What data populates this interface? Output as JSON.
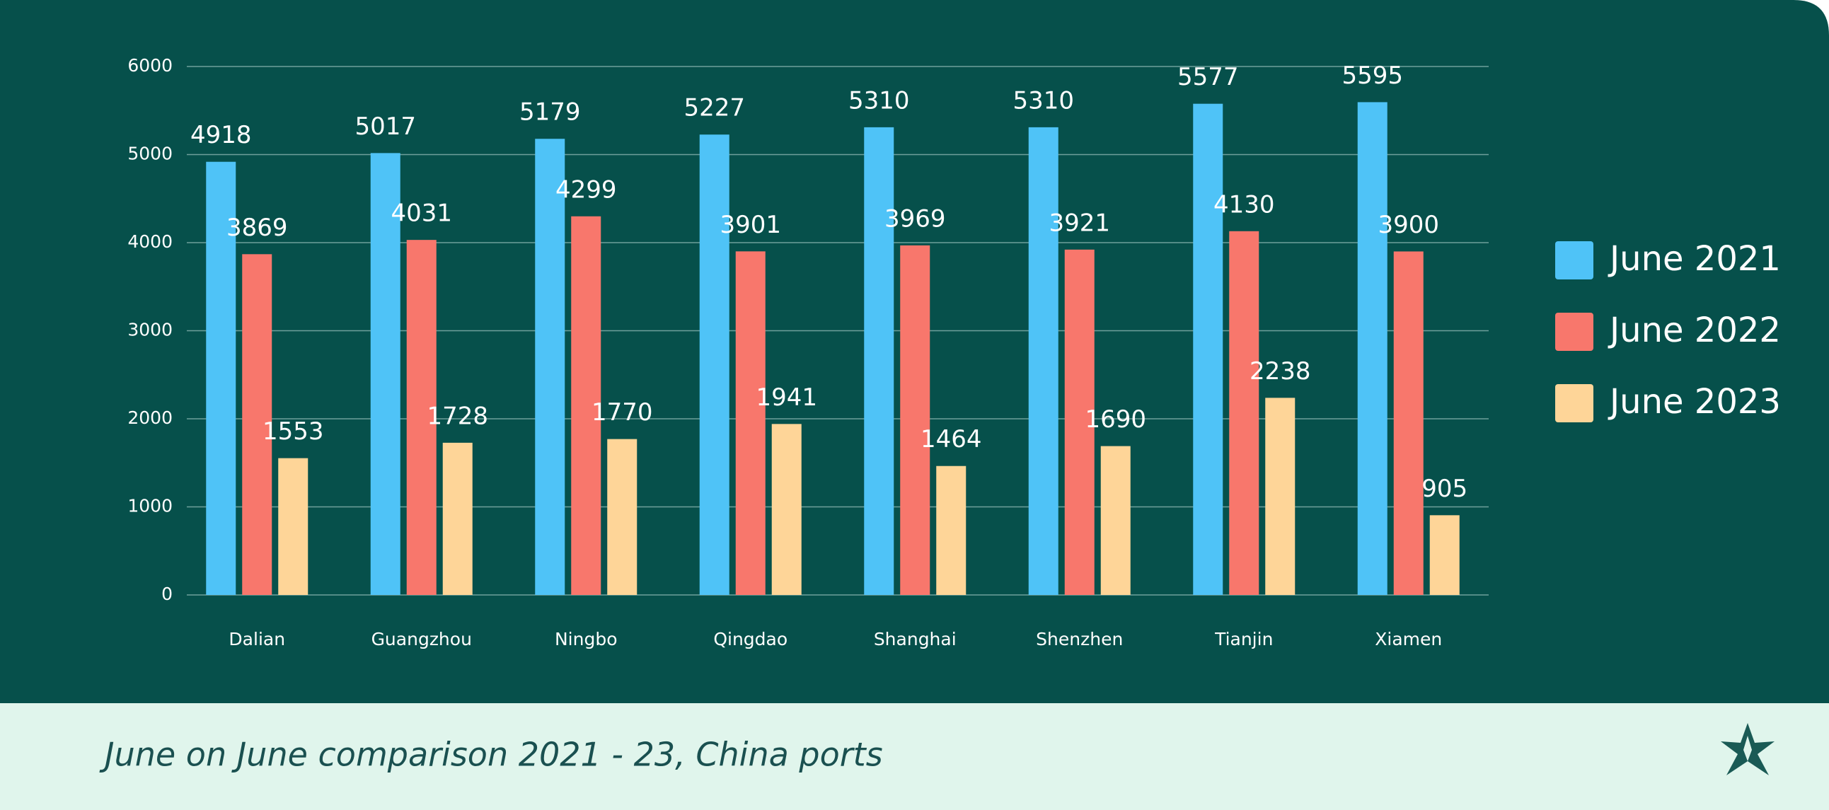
{
  "chart_data": {
    "type": "bar",
    "caption": "June on June comparison 2021 - 23, China ports",
    "categories": [
      "Dalian",
      "Guangzhou",
      "Ningbo",
      "Qingdao",
      "Shanghai",
      "Shenzhen",
      "Tianjin",
      "Xiamen"
    ],
    "series": [
      {
        "name": "June 2021",
        "color": "#4fc3f7",
        "values": [
          4918,
          5017,
          5179,
          5227,
          5310,
          5310,
          5577,
          5595
        ]
      },
      {
        "name": "June 2022",
        "color": "#f8776c",
        "values": [
          3869,
          4031,
          4299,
          3901,
          3969,
          3921,
          4130,
          3900
        ]
      },
      {
        "name": "June 2023",
        "color": "#fed598",
        "values": [
          1553,
          1728,
          1770,
          1941,
          1464,
          1690,
          2238,
          905
        ]
      }
    ],
    "ylim": [
      0,
      6000
    ],
    "yticks": [
      0,
      1000,
      2000,
      3000,
      4000,
      5000,
      6000
    ],
    "grid": true,
    "legend": "right"
  }
}
